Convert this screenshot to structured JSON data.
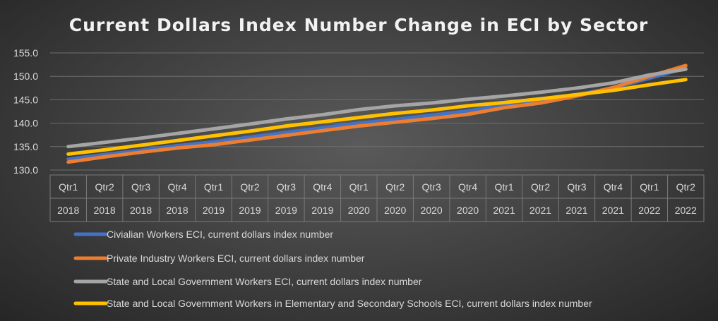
{
  "chart_data": {
    "type": "line",
    "title": "Current Dollars Index Number Change in ECI by Sector",
    "xlabel": "",
    "ylabel": "",
    "ylim": [
      130.0,
      155.0
    ],
    "yticks": [
      "130.0",
      "135.0",
      "140.0",
      "145.0",
      "150.0",
      "155.0"
    ],
    "grid": true,
    "legend_position": "bottom",
    "categories": [
      {
        "quarter": "Qtr1",
        "year": "2018"
      },
      {
        "quarter": "Qtr2",
        "year": "2018"
      },
      {
        "quarter": "Qtr3",
        "year": "2018"
      },
      {
        "quarter": "Qtr4",
        "year": "2018"
      },
      {
        "quarter": "Qtr1",
        "year": "2019"
      },
      {
        "quarter": "Qtr2",
        "year": "2019"
      },
      {
        "quarter": "Qtr3",
        "year": "2019"
      },
      {
        "quarter": "Qtr4",
        "year": "2019"
      },
      {
        "quarter": "Qtr1",
        "year": "2020"
      },
      {
        "quarter": "Qtr2",
        "year": "2020"
      },
      {
        "quarter": "Qtr3",
        "year": "2020"
      },
      {
        "quarter": "Qtr4",
        "year": "2020"
      },
      {
        "quarter": "Qtr1",
        "year": "2021"
      },
      {
        "quarter": "Qtr2",
        "year": "2021"
      },
      {
        "quarter": "Qtr3",
        "year": "2021"
      },
      {
        "quarter": "Qtr4",
        "year": "2021"
      },
      {
        "quarter": "Qtr1",
        "year": "2022"
      },
      {
        "quarter": "Qtr2",
        "year": "2022"
      }
    ],
    "series": [
      {
        "name": "Civialian Workers ECI, current dollars index number",
        "color": "#4472c4",
        "values": [
          132.3,
          133.3,
          134.2,
          135.2,
          136.0,
          137.0,
          138.0,
          139.0,
          140.0,
          140.8,
          141.7,
          142.6,
          143.9,
          144.9,
          146.1,
          147.5,
          149.6,
          151.8
        ]
      },
      {
        "name": "Private Industry Workers ECI, current dollars index number",
        "color": "#ed7d31",
        "values": [
          131.7,
          132.8,
          133.8,
          134.7,
          135.4,
          136.4,
          137.4,
          138.4,
          139.4,
          140.2,
          141.0,
          141.9,
          143.3,
          144.3,
          145.8,
          147.6,
          150.0,
          152.3
        ]
      },
      {
        "name": "State and Local Government Workers ECI, current dollars index number",
        "color": "#a5a5a5",
        "values": [
          135.0,
          135.9,
          136.8,
          137.8,
          138.8,
          139.8,
          140.9,
          141.8,
          142.9,
          143.7,
          144.3,
          145.1,
          145.8,
          146.6,
          147.5,
          148.6,
          150.3,
          151.5
        ]
      },
      {
        "name": "State and Local Government Workers in Elementary and Secondary Schools ECI, current dollars index number",
        "color": "#ffc000",
        "values": [
          133.4,
          134.3,
          135.3,
          136.3,
          137.3,
          138.3,
          139.4,
          140.3,
          141.2,
          142.1,
          142.8,
          143.7,
          144.4,
          145.2,
          146.1,
          147.0,
          148.2,
          149.3
        ]
      }
    ]
  }
}
